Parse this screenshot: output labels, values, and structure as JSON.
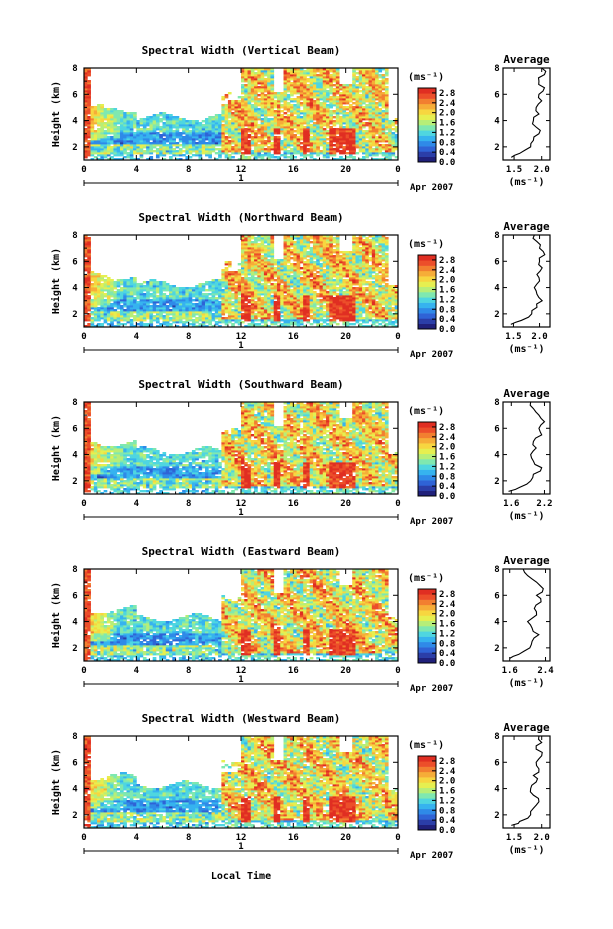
{
  "figure": {
    "xlabel": "Local Time",
    "date_label": "Apr 2007",
    "day_label": "1",
    "colorbar_unit": "(ms⁻¹)",
    "avg_title": "Average",
    "avg_unit": "(ms⁻¹)"
  },
  "colormap": [
    "#20207a",
    "#2b3ea8",
    "#2f63d6",
    "#2f8ae8",
    "#36b3ef",
    "#4fd6e0",
    "#7fe8b0",
    "#b7ee78",
    "#e6ef50",
    "#f7d640",
    "#f6ad38",
    "#f27f30",
    "#ec4e2a",
    "#e02e22"
  ],
  "chart_data": [
    {
      "type": "heatmap",
      "title": "Spectral Width (Vertical Beam)",
      "ylabel": "Height (km)",
      "x_ticks": [
        "0",
        "4",
        "8",
        "12",
        "16",
        "20",
        "0"
      ],
      "y_ticks": [
        "2",
        "4",
        "6",
        "8"
      ],
      "xlim": [
        0,
        24
      ],
      "ylim": [
        1,
        8
      ],
      "colorbar": {
        "ticks": [
          "0.0",
          "0.4",
          "0.8",
          "1.2",
          "1.6",
          "2.0",
          "2.4",
          "2.8"
        ],
        "range": [
          0.0,
          3.0
        ]
      },
      "average_profile": {
        "type": "line",
        "x_ticks": [
          "1.5",
          "2.0"
        ],
        "xlim": [
          1.3,
          2.15
        ],
        "y_ticks": [
          "2",
          "4",
          "6",
          "8"
        ],
        "ylim": [
          1,
          8
        ],
        "heights": [
          1.2,
          1.5,
          2.0,
          2.5,
          3.0,
          3.5,
          4.0,
          4.5,
          5.0,
          5.5,
          6.0,
          6.5,
          7.0,
          7.5,
          8.0
        ],
        "values": [
          1.45,
          1.6,
          1.8,
          1.85,
          1.95,
          1.9,
          1.85,
          1.95,
          1.9,
          2.0,
          1.95,
          2.05,
          1.95,
          2.05,
          2.0
        ]
      }
    },
    {
      "type": "heatmap",
      "title": "Spectral Width (Northward Beam)",
      "ylabel": "Height (km)",
      "x_ticks": [
        "0",
        "4",
        "8",
        "12",
        "16",
        "20",
        "0"
      ],
      "y_ticks": [
        "2",
        "4",
        "6",
        "8"
      ],
      "xlim": [
        0,
        24
      ],
      "ylim": [
        1,
        8
      ],
      "colorbar": {
        "ticks": [
          "0.0",
          "0.4",
          "0.8",
          "1.2",
          "1.6",
          "2.0",
          "2.4",
          "2.8"
        ],
        "range": [
          0.0,
          3.0
        ]
      },
      "average_profile": {
        "type": "line",
        "x_ticks": [
          "1.5",
          "2.0"
        ],
        "xlim": [
          1.3,
          2.2
        ],
        "y_ticks": [
          "2",
          "4",
          "6",
          "8"
        ],
        "ylim": [
          1,
          8
        ],
        "heights": [
          1.2,
          1.5,
          2.0,
          2.5,
          3.0,
          3.5,
          4.0,
          4.5,
          5.0,
          5.5,
          6.0,
          6.5,
          7.0,
          7.5,
          8.0
        ],
        "values": [
          1.45,
          1.65,
          1.85,
          1.95,
          2.05,
          1.95,
          1.9,
          2.0,
          1.95,
          2.05,
          2.0,
          2.1,
          2.0,
          1.95,
          1.9
        ]
      }
    },
    {
      "type": "heatmap",
      "title": "Spectral Width (Southward Beam)",
      "ylabel": "Height (km)",
      "x_ticks": [
        "0",
        "4",
        "8",
        "12",
        "16",
        "20",
        "0"
      ],
      "y_ticks": [
        "2",
        "4",
        "6",
        "8"
      ],
      "xlim": [
        0,
        24
      ],
      "ylim": [
        1,
        8
      ],
      "colorbar": {
        "ticks": [
          "0.0",
          "0.4",
          "0.8",
          "1.2",
          "1.6",
          "2.0",
          "2.4",
          "2.8"
        ],
        "range": [
          0.0,
          3.0
        ]
      },
      "average_profile": {
        "type": "line",
        "x_ticks": [
          "1.6",
          "2.2"
        ],
        "xlim": [
          1.45,
          2.3
        ],
        "y_ticks": [
          "2",
          "4",
          "6",
          "8"
        ],
        "ylim": [
          1,
          8
        ],
        "heights": [
          1.2,
          1.5,
          2.0,
          2.5,
          3.0,
          3.5,
          4.0,
          4.5,
          5.0,
          5.5,
          6.0,
          6.5,
          7.0,
          7.5,
          8.0
        ],
        "values": [
          1.55,
          1.75,
          1.95,
          2.0,
          2.15,
          2.0,
          1.95,
          2.05,
          2.0,
          2.15,
          2.1,
          2.2,
          2.1,
          2.0,
          1.95
        ]
      }
    },
    {
      "type": "heatmap",
      "title": "Spectral Width (Eastward Beam)",
      "ylabel": "Height (km)",
      "x_ticks": [
        "0",
        "4",
        "8",
        "12",
        "16",
        "20",
        "0"
      ],
      "y_ticks": [
        "2",
        "4",
        "6",
        "8"
      ],
      "xlim": [
        0,
        24
      ],
      "ylim": [
        1,
        8
      ],
      "colorbar": {
        "ticks": [
          "0.0",
          "0.4",
          "0.8",
          "1.2",
          "1.6",
          "2.0",
          "2.4",
          "2.8"
        ],
        "range": [
          0.0,
          3.0
        ]
      },
      "average_profile": {
        "type": "line",
        "x_ticks": [
          "1.6",
          "2.4"
        ],
        "xlim": [
          1.45,
          2.5
        ],
        "y_ticks": [
          "2",
          "4",
          "6",
          "8"
        ],
        "ylim": [
          1,
          8
        ],
        "heights": [
          1.2,
          1.5,
          2.0,
          2.5,
          3.0,
          3.5,
          4.0,
          4.5,
          5.0,
          5.5,
          6.0,
          6.5,
          7.0,
          7.5,
          8.0
        ],
        "values": [
          1.6,
          1.8,
          2.05,
          2.1,
          2.25,
          2.1,
          2.0,
          2.2,
          2.15,
          2.3,
          2.2,
          2.35,
          2.2,
          2.0,
          1.9
        ]
      }
    },
    {
      "type": "heatmap",
      "title": "Spectral Width (Westward Beam)",
      "ylabel": "Height (km)",
      "x_ticks": [
        "0",
        "4",
        "8",
        "12",
        "16",
        "20",
        "0"
      ],
      "y_ticks": [
        "2",
        "4",
        "6",
        "8"
      ],
      "xlim": [
        0,
        24
      ],
      "ylim": [
        1,
        8
      ],
      "colorbar": {
        "ticks": [
          "0.0",
          "0.4",
          "0.8",
          "1.2",
          "1.6",
          "2.0",
          "2.4",
          "2.8"
        ],
        "range": [
          0.0,
          3.0
        ]
      },
      "average_profile": {
        "type": "line",
        "x_ticks": [
          "1.5",
          "2.0"
        ],
        "xlim": [
          1.3,
          2.15
        ],
        "y_ticks": [
          "2",
          "4",
          "6",
          "8"
        ],
        "ylim": [
          1,
          8
        ],
        "heights": [
          1.2,
          1.5,
          2.0,
          2.5,
          3.0,
          3.5,
          4.0,
          4.5,
          5.0,
          5.5,
          6.0,
          6.5,
          7.0,
          7.5,
          8.0
        ],
        "values": [
          1.45,
          1.6,
          1.8,
          1.85,
          1.95,
          1.85,
          1.8,
          1.9,
          1.85,
          1.95,
          1.9,
          2.0,
          1.9,
          2.0,
          1.95
        ]
      }
    }
  ]
}
